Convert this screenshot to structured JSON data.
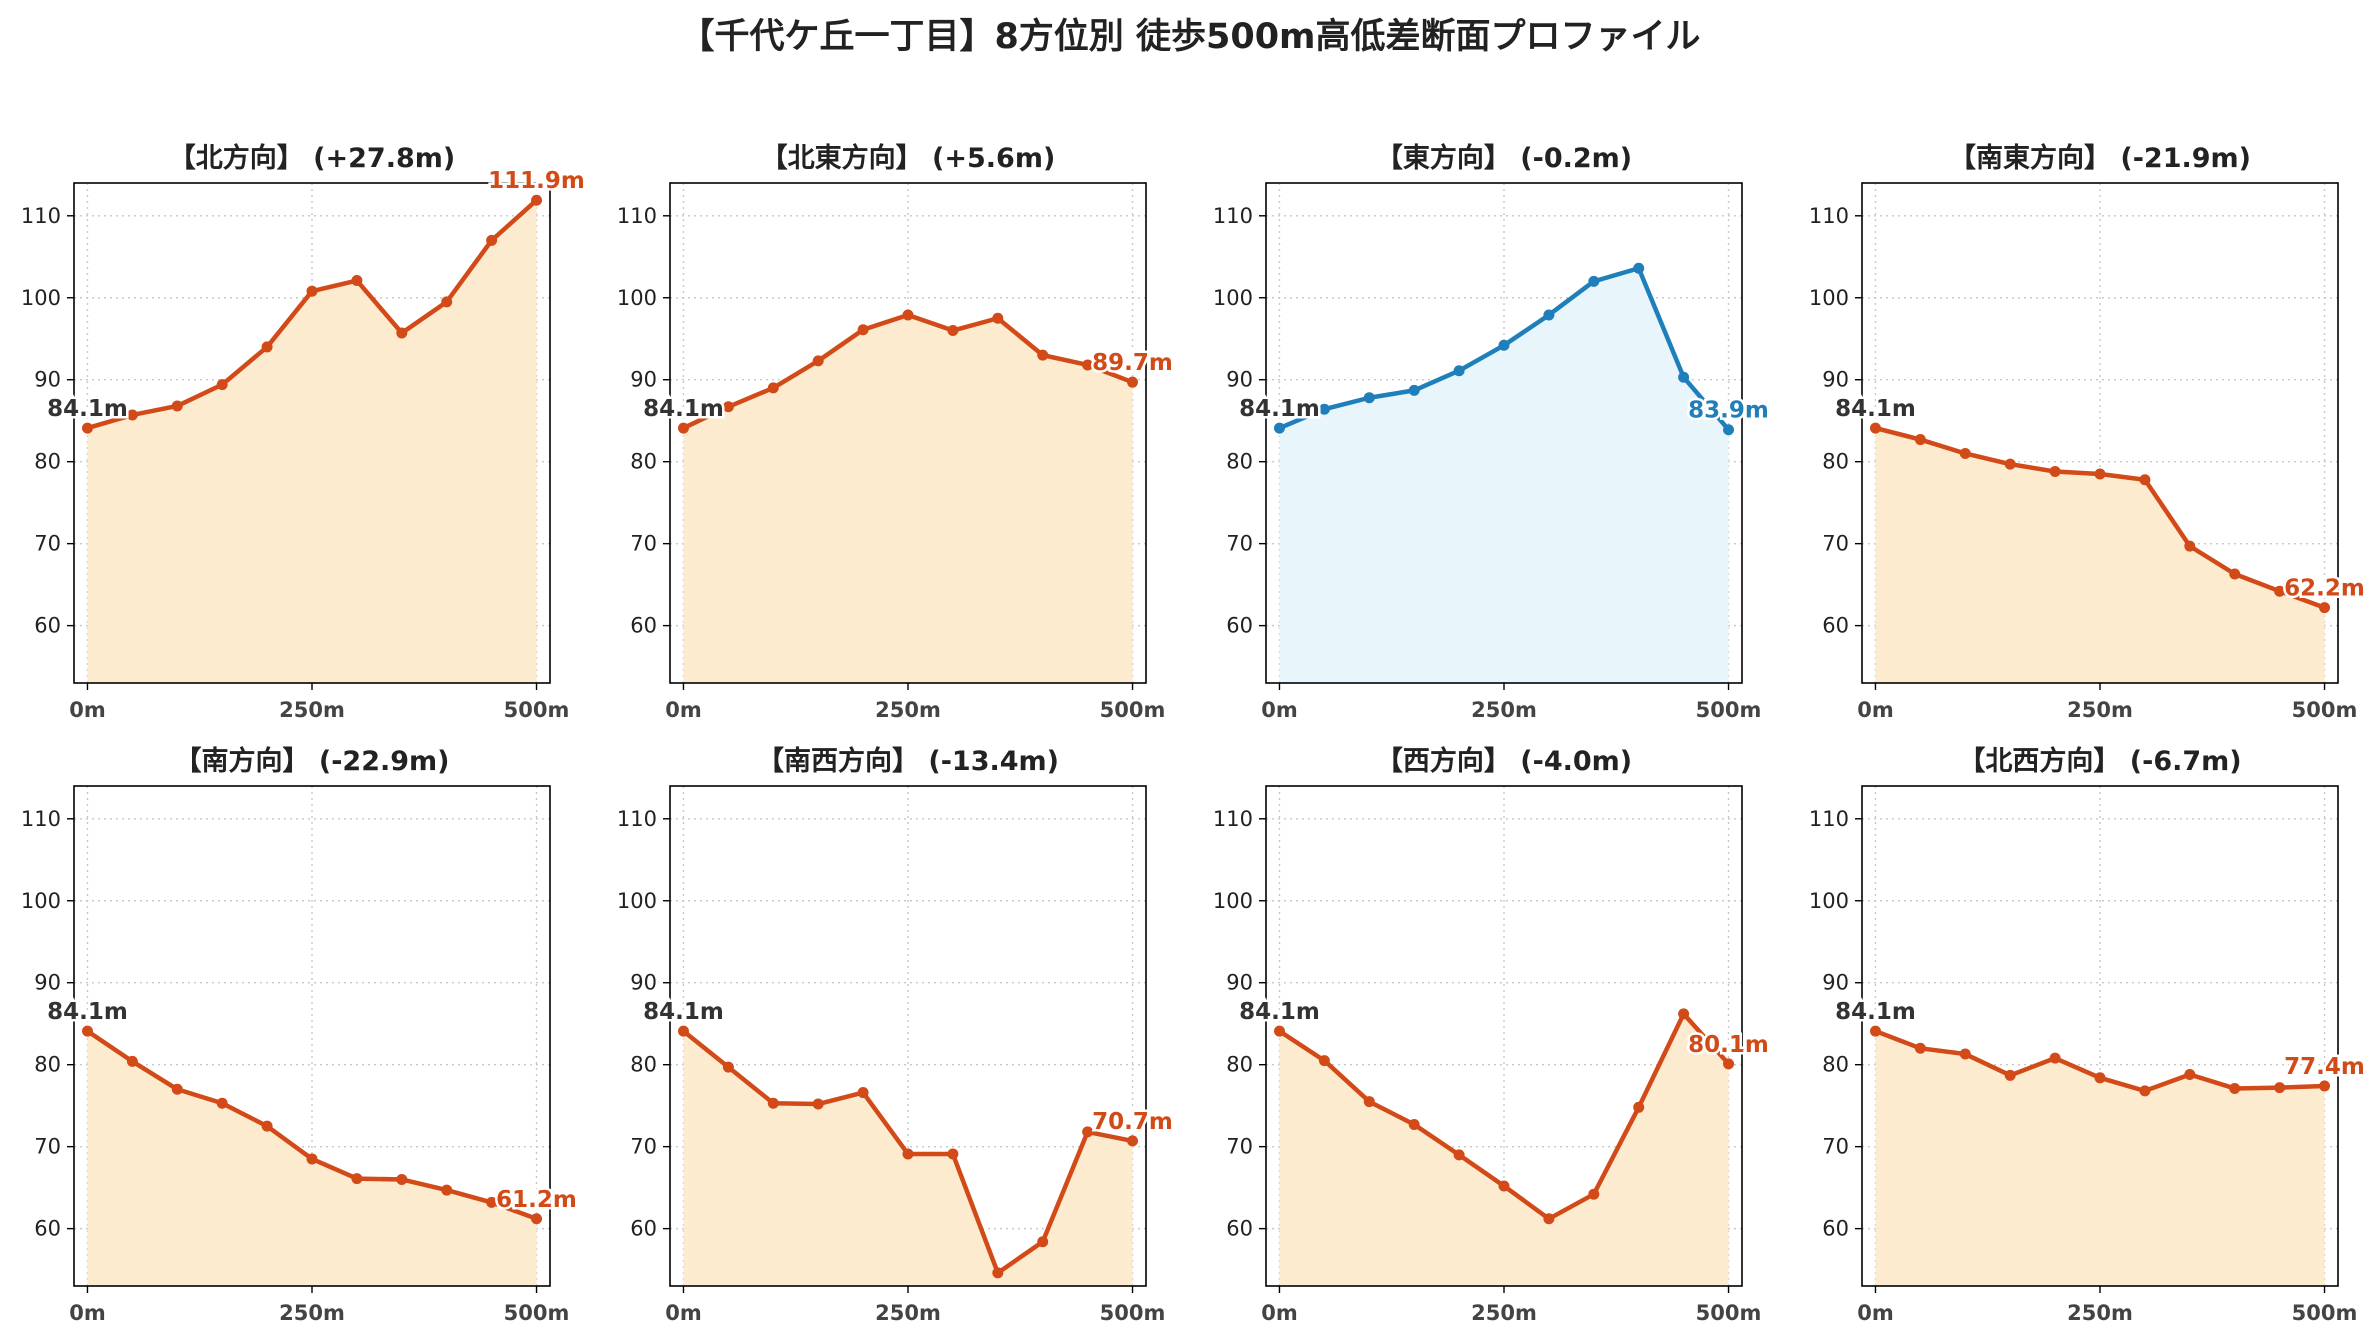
{
  "title": "【千代ケ丘一丁目】8方位別 徒歩500m高低差断面プロファイル",
  "colors": {
    "up_line": "#d24a17",
    "up_fill": "#fdebd0",
    "flat_line": "#1f7fba",
    "flat_fill": "#e8f5fb",
    "start_label": "#333333",
    "grid": "#c8c8c8"
  },
  "chart_data": [
    {
      "type": "area",
      "title": "【北方向】 (+27.8m)",
      "x": [
        0,
        50,
        100,
        150,
        200,
        250,
        300,
        350,
        400,
        450,
        500
      ],
      "xticks": [
        0,
        250,
        500
      ],
      "xtick_labels": [
        "0m",
        "250m",
        "500m"
      ],
      "ylim": [
        53,
        114
      ],
      "yticks": [
        60,
        70,
        80,
        90,
        100,
        110
      ],
      "ytick_labels": [
        "60",
        "70",
        "80",
        "90",
        "100",
        "110"
      ],
      "grid": true,
      "series": [
        {
          "values": [
            84.1,
            85.7,
            86.8,
            89.4,
            94.0,
            100.8,
            102.1,
            95.7,
            99.5,
            107.0,
            111.9
          ]
        }
      ],
      "color": "up",
      "start_label": "84.1m",
      "end_label": "111.9m"
    },
    {
      "type": "area",
      "title": "【北東方向】 (+5.6m)",
      "x": [
        0,
        50,
        100,
        150,
        200,
        250,
        300,
        350,
        400,
        450,
        500
      ],
      "xticks": [
        0,
        250,
        500
      ],
      "xtick_labels": [
        "0m",
        "250m",
        "500m"
      ],
      "ylim": [
        53,
        114
      ],
      "yticks": [
        60,
        70,
        80,
        90,
        100,
        110
      ],
      "ytick_labels": [
        "60",
        "70",
        "80",
        "90",
        "100",
        "110"
      ],
      "grid": true,
      "series": [
        {
          "values": [
            84.1,
            86.7,
            89.0,
            92.3,
            96.1,
            97.9,
            96.0,
            97.5,
            93.0,
            91.8,
            89.7
          ]
        }
      ],
      "color": "up",
      "start_label": "84.1m",
      "end_label": "89.7m"
    },
    {
      "type": "area",
      "title": "【東方向】 (-0.2m)",
      "x": [
        0,
        50,
        100,
        150,
        200,
        250,
        300,
        350,
        400,
        450,
        500
      ],
      "xticks": [
        0,
        250,
        500
      ],
      "xtick_labels": [
        "0m",
        "250m",
        "500m"
      ],
      "ylim": [
        53,
        114
      ],
      "yticks": [
        60,
        70,
        80,
        90,
        100,
        110
      ],
      "ytick_labels": [
        "60",
        "70",
        "80",
        "90",
        "100",
        "110"
      ],
      "grid": true,
      "series": [
        {
          "values": [
            84.1,
            86.4,
            87.8,
            88.7,
            91.1,
            94.2,
            97.9,
            102.0,
            103.6,
            90.3,
            83.9
          ]
        }
      ],
      "color": "flat",
      "start_label": "84.1m",
      "end_label": "83.9m"
    },
    {
      "type": "area",
      "title": "【南東方向】 (-21.9m)",
      "x": [
        0,
        50,
        100,
        150,
        200,
        250,
        300,
        350,
        400,
        450,
        500
      ],
      "xticks": [
        0,
        250,
        500
      ],
      "xtick_labels": [
        "0m",
        "250m",
        "500m"
      ],
      "ylim": [
        53,
        114
      ],
      "yticks": [
        60,
        70,
        80,
        90,
        100,
        110
      ],
      "ytick_labels": [
        "60",
        "70",
        "80",
        "90",
        "100",
        "110"
      ],
      "grid": true,
      "series": [
        {
          "values": [
            84.1,
            82.7,
            81.0,
            79.7,
            78.8,
            78.5,
            77.8,
            69.7,
            66.3,
            64.2,
            62.2
          ]
        }
      ],
      "color": "up",
      "start_label": "84.1m",
      "end_label": "62.2m"
    },
    {
      "type": "area",
      "title": "【南方向】 (-22.9m)",
      "x": [
        0,
        50,
        100,
        150,
        200,
        250,
        300,
        350,
        400,
        450,
        500
      ],
      "xticks": [
        0,
        250,
        500
      ],
      "xtick_labels": [
        "0m",
        "250m",
        "500m"
      ],
      "ylim": [
        53,
        114
      ],
      "yticks": [
        60,
        70,
        80,
        90,
        100,
        110
      ],
      "ytick_labels": [
        "60",
        "70",
        "80",
        "90",
        "100",
        "110"
      ],
      "grid": true,
      "series": [
        {
          "values": [
            84.1,
            80.4,
            77.0,
            75.3,
            72.5,
            68.5,
            66.1,
            66.0,
            64.7,
            63.2,
            61.2
          ]
        }
      ],
      "color": "up",
      "start_label": "84.1m",
      "end_label": "61.2m"
    },
    {
      "type": "area",
      "title": "【南西方向】 (-13.4m)",
      "x": [
        0,
        50,
        100,
        150,
        200,
        250,
        300,
        350,
        400,
        450,
        500
      ],
      "xticks": [
        0,
        250,
        500
      ],
      "xtick_labels": [
        "0m",
        "250m",
        "500m"
      ],
      "ylim": [
        53,
        114
      ],
      "yticks": [
        60,
        70,
        80,
        90,
        100,
        110
      ],
      "ytick_labels": [
        "60",
        "70",
        "80",
        "90",
        "100",
        "110"
      ],
      "grid": true,
      "series": [
        {
          "values": [
            84.1,
            79.7,
            75.3,
            75.2,
            76.6,
            69.1,
            69.1,
            54.6,
            58.4,
            71.8,
            70.7
          ]
        }
      ],
      "color": "up",
      "start_label": "84.1m",
      "end_label": "70.7m"
    },
    {
      "type": "area",
      "title": "【西方向】 (-4.0m)",
      "x": [
        0,
        50,
        100,
        150,
        200,
        250,
        300,
        350,
        400,
        450,
        500
      ],
      "xticks": [
        0,
        250,
        500
      ],
      "xtick_labels": [
        "0m",
        "250m",
        "500m"
      ],
      "ylim": [
        53,
        114
      ],
      "yticks": [
        60,
        70,
        80,
        90,
        100,
        110
      ],
      "ytick_labels": [
        "60",
        "70",
        "80",
        "90",
        "100",
        "110"
      ],
      "grid": true,
      "series": [
        {
          "values": [
            84.1,
            80.5,
            75.5,
            72.7,
            69.0,
            65.2,
            61.2,
            64.2,
            74.8,
            86.2,
            80.1
          ]
        }
      ],
      "color": "up",
      "start_label": "84.1m",
      "end_label": "80.1m"
    },
    {
      "type": "area",
      "title": "【北西方向】 (-6.7m)",
      "x": [
        0,
        50,
        100,
        150,
        200,
        250,
        300,
        350,
        400,
        450,
        500
      ],
      "xticks": [
        0,
        250,
        500
      ],
      "xtick_labels": [
        "0m",
        "250m",
        "500m"
      ],
      "ylim": [
        53,
        114
      ],
      "yticks": [
        60,
        70,
        80,
        90,
        100,
        110
      ],
      "ytick_labels": [
        "60",
        "70",
        "80",
        "90",
        "100",
        "110"
      ],
      "grid": true,
      "series": [
        {
          "values": [
            84.1,
            82.0,
            81.3,
            78.7,
            80.8,
            78.4,
            76.8,
            78.8,
            77.1,
            77.2,
            77.4
          ]
        }
      ],
      "color": "up",
      "start_label": "84.1m",
      "end_label": "77.4m"
    }
  ]
}
